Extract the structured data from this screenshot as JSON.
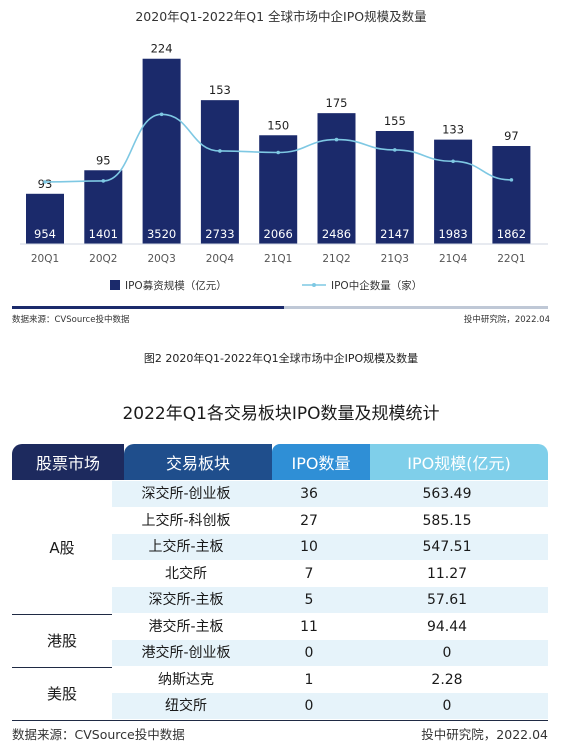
{
  "chart_data": {
    "type": "bar",
    "title": "2020年Q1-2022年Q1 全球市场中企IPO规模及数量",
    "categories": [
      "20Q1",
      "20Q2",
      "20Q3",
      "20Q4",
      "21Q1",
      "21Q2",
      "21Q3",
      "21Q4",
      "22Q1"
    ],
    "series": [
      {
        "name": "IPO募资规模（亿元）",
        "type": "bar",
        "values": [
          954,
          1401,
          3520,
          2733,
          2066,
          2486,
          2147,
          1983,
          1862
        ],
        "color": "#1b2a6b"
      },
      {
        "name": "IPO中企数量（家）",
        "type": "line",
        "values": [
          93,
          95,
          224,
          153,
          150,
          175,
          155,
          133,
          97
        ],
        "color": "#7ec8e3"
      }
    ],
    "ylim_bar": [
      0,
      3800
    ],
    "ylim_line": [
      0,
      240
    ],
    "grid": false,
    "legend_position": "bottom"
  },
  "source_note": {
    "left": "数据来源：CVSource投中数据",
    "right": "投中研究院，2022.04"
  },
  "figure_caption": "图2 2020年Q1-2022年Q1全球市场中企IPO规模及数量",
  "table": {
    "title": "2022年Q1各交易板块IPO数量及规模统计",
    "headers": [
      "股票市场",
      "交易板块",
      "IPO数量",
      "IPO规模(亿元)"
    ],
    "header_colors": [
      "#1d2a5e",
      "#1f4e8c",
      "#2f8fd6",
      "#7fcfea"
    ],
    "stripe_color": "#e6f3fa",
    "groups": [
      {
        "market": "A股",
        "rows": [
          {
            "board": "深交所-创业板",
            "count": "36",
            "size": "563.49"
          },
          {
            "board": "上交所-科创板",
            "count": "27",
            "size": "585.15"
          },
          {
            "board": "上交所-主板",
            "count": "10",
            "size": "547.51"
          },
          {
            "board": "北交所",
            "count": "7",
            "size": "11.27"
          },
          {
            "board": "深交所-主板",
            "count": "5",
            "size": "57.61"
          }
        ]
      },
      {
        "market": "港股",
        "rows": [
          {
            "board": "港交所-主板",
            "count": "11",
            "size": "94.44"
          },
          {
            "board": "港交所-创业板",
            "count": "0",
            "size": "0"
          }
        ]
      },
      {
        "market": "美股",
        "rows": [
          {
            "board": "纳斯达克",
            "count": "1",
            "size": "2.28"
          },
          {
            "board": "纽交所",
            "count": "0",
            "size": "0"
          }
        ]
      }
    ],
    "source_left": "数据来源：CVSource投中数据",
    "source_right": "投中研究院，2022.04"
  }
}
